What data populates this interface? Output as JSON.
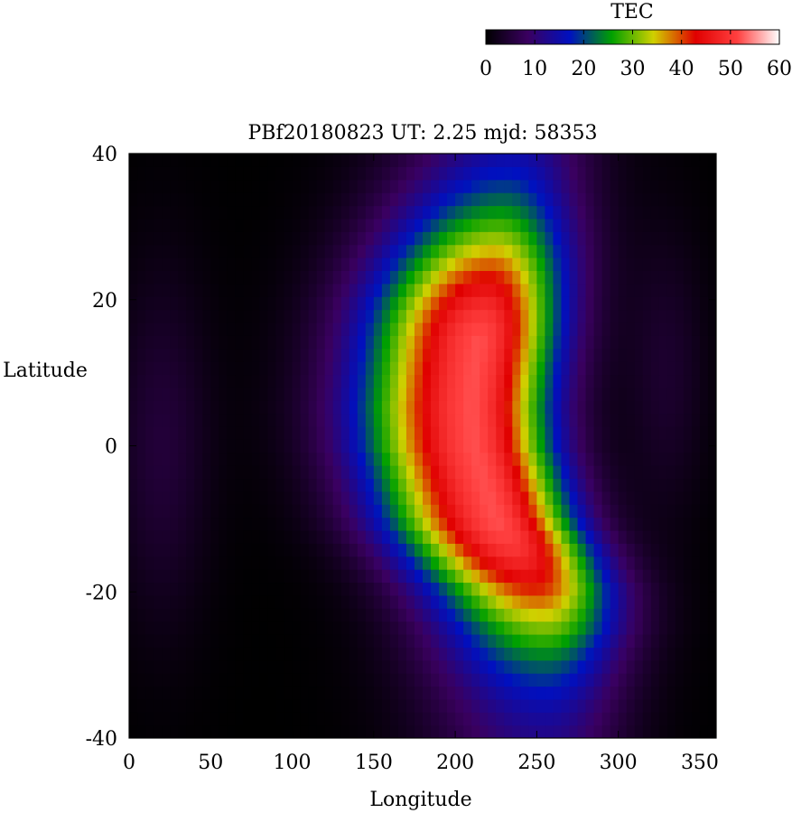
{
  "chart_data": {
    "type": "heatmap",
    "title": "PBf20180823  UT: 2.25  mjd: 58353",
    "xlabel": "Longitude",
    "ylabel": "Latitude",
    "xlim": [
      0,
      360
    ],
    "ylim": [
      -40,
      40
    ],
    "x_ticks": [
      "0",
      "50",
      "100",
      "150",
      "200",
      "250",
      "300",
      "350"
    ],
    "y_ticks": [
      "40",
      "20",
      "0",
      "-20",
      "-40"
    ],
    "colorbar": {
      "label": "TEC",
      "range": [
        0,
        60
      ],
      "ticks": [
        "0",
        "10",
        "20",
        "30",
        "40",
        "50",
        "60"
      ],
      "colors": [
        "#000000",
        "#3a0060",
        "#0010c0",
        "#00a000",
        "#d0d000",
        "#e00000",
        "#ff4040",
        "#ffffff"
      ]
    },
    "peak_tec": 52,
    "ridge": [
      {
        "lat": 40,
        "lon": 235
      },
      {
        "lat": 35,
        "lon": 230
      },
      {
        "lat": 30,
        "lon": 226
      },
      {
        "lat": 25,
        "lon": 222
      },
      {
        "lat": 20,
        "lon": 218
      },
      {
        "lat": 15,
        "lon": 215
      },
      {
        "lat": 10,
        "lon": 212
      },
      {
        "lat": 5,
        "lon": 210
      },
      {
        "lat": 0,
        "lon": 212
      },
      {
        "lat": -5,
        "lon": 218
      },
      {
        "lat": -10,
        "lon": 225
      },
      {
        "lat": -15,
        "lon": 238
      },
      {
        "lat": -20,
        "lon": 250
      },
      {
        "lat": -25,
        "lon": 255
      },
      {
        "lat": -30,
        "lon": 255
      },
      {
        "lat": -35,
        "lon": 255
      },
      {
        "lat": -40,
        "lon": 255
      }
    ]
  }
}
